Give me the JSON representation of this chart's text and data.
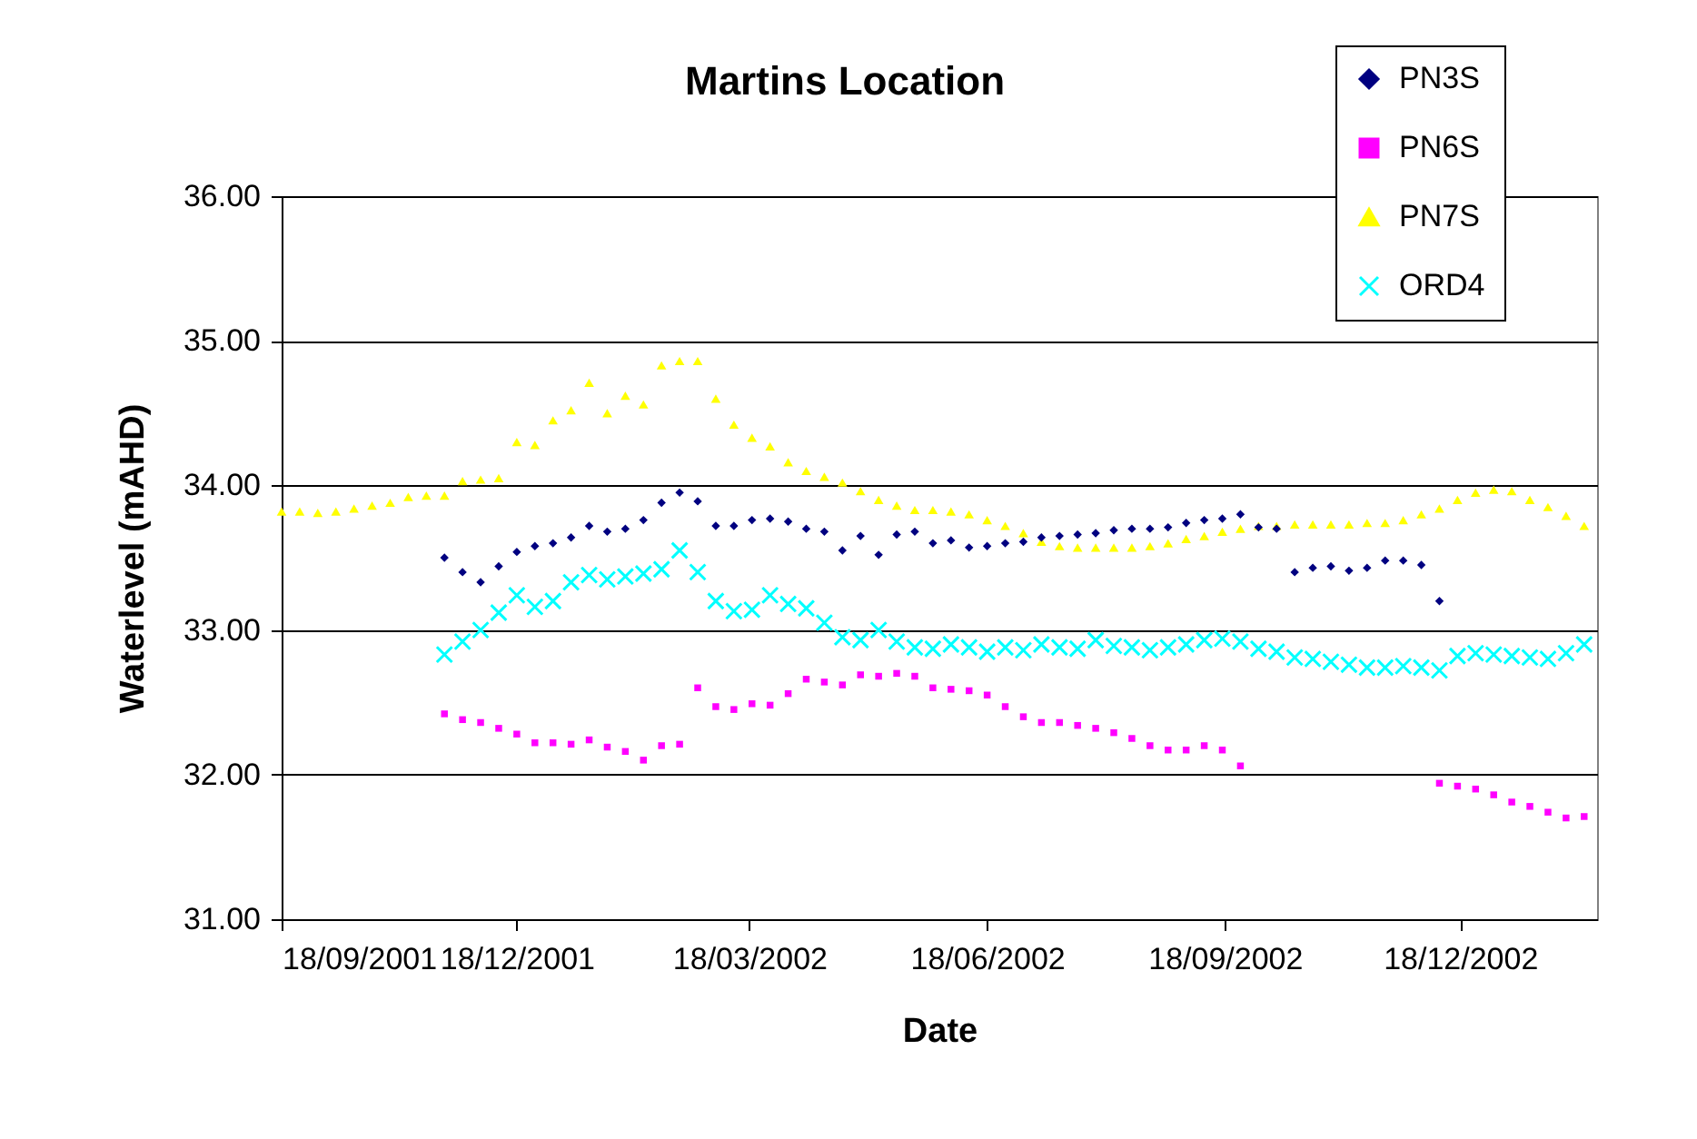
{
  "chart_data": {
    "type": "scatter",
    "title": "Martins Location",
    "xlabel": "Date",
    "ylabel": "Waterlevel (mAHD)",
    "x": [
      "2001-09-18",
      "2001-09-25",
      "2001-10-02",
      "2001-10-09",
      "2001-10-16",
      "2001-10-23",
      "2001-10-30",
      "2001-11-06",
      "2001-11-13",
      "2001-11-20",
      "2001-11-27",
      "2001-12-04",
      "2001-12-11",
      "2001-12-18",
      "2001-12-25",
      "2002-01-01",
      "2002-01-08",
      "2002-01-15",
      "2002-01-22",
      "2002-01-29",
      "2002-02-05",
      "2002-02-12",
      "2002-02-19",
      "2002-02-26",
      "2002-03-05",
      "2002-03-12",
      "2002-03-19",
      "2002-03-26",
      "2002-04-02",
      "2002-04-09",
      "2002-04-16",
      "2002-04-23",
      "2002-04-30",
      "2002-05-07",
      "2002-05-14",
      "2002-05-21",
      "2002-05-28",
      "2002-06-04",
      "2002-06-11",
      "2002-06-18",
      "2002-06-25",
      "2002-07-02",
      "2002-07-09",
      "2002-07-16",
      "2002-07-23",
      "2002-07-30",
      "2002-08-06",
      "2002-08-13",
      "2002-08-20",
      "2002-08-27",
      "2002-09-03",
      "2002-09-10",
      "2002-09-17",
      "2002-09-24",
      "2002-10-01",
      "2002-10-08",
      "2002-10-15",
      "2002-10-22",
      "2002-10-29",
      "2002-11-05",
      "2002-11-12",
      "2002-11-19",
      "2002-11-26",
      "2002-12-03",
      "2002-12-10",
      "2002-12-17",
      "2002-12-24",
      "2002-12-31",
      "2003-01-07",
      "2003-01-14",
      "2003-01-21",
      "2003-01-28",
      "2003-02-04"
    ],
    "series": [
      {
        "name": "PN3S",
        "color": "#000080",
        "marker": "diamond",
        "values": [
          null,
          null,
          null,
          null,
          null,
          null,
          null,
          null,
          null,
          33.5,
          33.4,
          33.33,
          33.44,
          33.54,
          33.58,
          33.6,
          33.64,
          33.72,
          33.68,
          33.7,
          33.76,
          33.88,
          33.95,
          33.89,
          33.72,
          33.72,
          33.76,
          33.77,
          33.75,
          33.7,
          33.68,
          33.55,
          33.65,
          33.52,
          33.66,
          33.68,
          33.6,
          33.62,
          33.57,
          33.58,
          33.6,
          33.61,
          33.64,
          33.65,
          33.66,
          33.67,
          33.69,
          33.7,
          33.7,
          33.71,
          33.74,
          33.76,
          33.77,
          33.8,
          33.71,
          33.7,
          33.4,
          33.43,
          33.44,
          33.41,
          33.43,
          33.48,
          33.48,
          33.45,
          33.2,
          null,
          null,
          null,
          null,
          null,
          null,
          null,
          null
        ]
      },
      {
        "name": "PN6S",
        "color": "#ff00ff",
        "marker": "square",
        "values": [
          null,
          null,
          null,
          null,
          null,
          null,
          null,
          null,
          null,
          32.42,
          32.38,
          32.36,
          32.32,
          32.28,
          32.22,
          32.22,
          32.21,
          32.24,
          32.19,
          32.16,
          32.1,
          32.2,
          32.21,
          32.6,
          32.47,
          32.45,
          32.49,
          32.48,
          32.56,
          32.66,
          32.64,
          32.62,
          32.69,
          32.68,
          32.7,
          32.68,
          32.6,
          32.59,
          32.58,
          32.55,
          32.47,
          32.4,
          32.36,
          32.36,
          32.34,
          32.32,
          32.29,
          32.25,
          32.2,
          32.17,
          32.17,
          32.2,
          32.17,
          32.06,
          null,
          null,
          null,
          null,
          null,
          null,
          null,
          null,
          null,
          null,
          31.94,
          31.92,
          31.9,
          31.86,
          31.81,
          31.78,
          31.74,
          31.7,
          31.71
        ]
      },
      {
        "name": "PN7S",
        "color": "#ffff00",
        "marker": "triangle",
        "values": [
          33.82,
          33.82,
          33.81,
          33.82,
          33.84,
          33.86,
          33.88,
          33.92,
          33.93,
          33.93,
          34.03,
          34.04,
          34.05,
          34.3,
          34.28,
          34.45,
          34.52,
          34.71,
          34.5,
          34.62,
          34.56,
          34.83,
          34.86,
          34.86,
          34.6,
          34.42,
          34.33,
          34.27,
          34.16,
          34.1,
          34.06,
          34.02,
          33.96,
          33.9,
          33.86,
          33.83,
          33.83,
          33.82,
          33.8,
          33.76,
          33.72,
          33.67,
          33.61,
          33.58,
          33.57,
          33.57,
          33.57,
          33.57,
          33.58,
          33.6,
          33.63,
          33.65,
          33.68,
          33.7,
          33.72,
          33.72,
          33.73,
          33.73,
          33.73,
          33.73,
          33.74,
          33.74,
          33.76,
          33.8,
          33.84,
          33.9,
          33.95,
          33.97,
          33.96,
          33.9,
          33.85,
          33.79,
          33.72
        ]
      },
      {
        "name": "ORD4",
        "color": "#00ffff",
        "marker": "cross",
        "values": [
          null,
          null,
          null,
          null,
          null,
          null,
          null,
          null,
          null,
          32.83,
          32.92,
          33.0,
          33.12,
          33.24,
          33.16,
          33.2,
          33.33,
          33.38,
          33.35,
          33.37,
          33.39,
          33.42,
          33.55,
          33.4,
          33.2,
          33.13,
          33.14,
          33.24,
          33.18,
          33.15,
          33.05,
          32.95,
          32.93,
          33.0,
          32.92,
          32.88,
          32.87,
          32.9,
          32.88,
          32.85,
          32.88,
          32.86,
          32.9,
          32.88,
          32.87,
          32.93,
          32.89,
          32.88,
          32.86,
          32.88,
          32.9,
          32.93,
          32.94,
          32.92,
          32.87,
          32.85,
          32.81,
          32.8,
          32.78,
          32.76,
          32.74,
          32.74,
          32.75,
          32.74,
          32.72,
          32.82,
          32.84,
          32.83,
          32.82,
          32.81,
          32.8,
          32.84,
          32.9
        ]
      }
    ],
    "xlim": [
      "2001-09-18",
      "2003-02-09"
    ],
    "xticks": [
      {
        "value": "2001-09-18",
        "label": "18/09/2001"
      },
      {
        "value": "2001-12-18",
        "label": "18/12/2001"
      },
      {
        "value": "2002-03-18",
        "label": "18/03/2002"
      },
      {
        "value": "2002-06-18",
        "label": "18/06/2002"
      },
      {
        "value": "2002-09-18",
        "label": "18/09/2002"
      },
      {
        "value": "2002-12-18",
        "label": "18/12/2002"
      }
    ],
    "ylim": [
      31,
      36
    ],
    "yticks": [
      {
        "value": 31,
        "label": "31.00"
      },
      {
        "value": 32,
        "label": "32.00"
      },
      {
        "value": 33,
        "label": "33.00"
      },
      {
        "value": 34,
        "label": "34.00"
      },
      {
        "value": 35,
        "label": "35.00"
      },
      {
        "value": 36,
        "label": "36.00"
      }
    ],
    "grid": "y",
    "legend": "top right"
  }
}
